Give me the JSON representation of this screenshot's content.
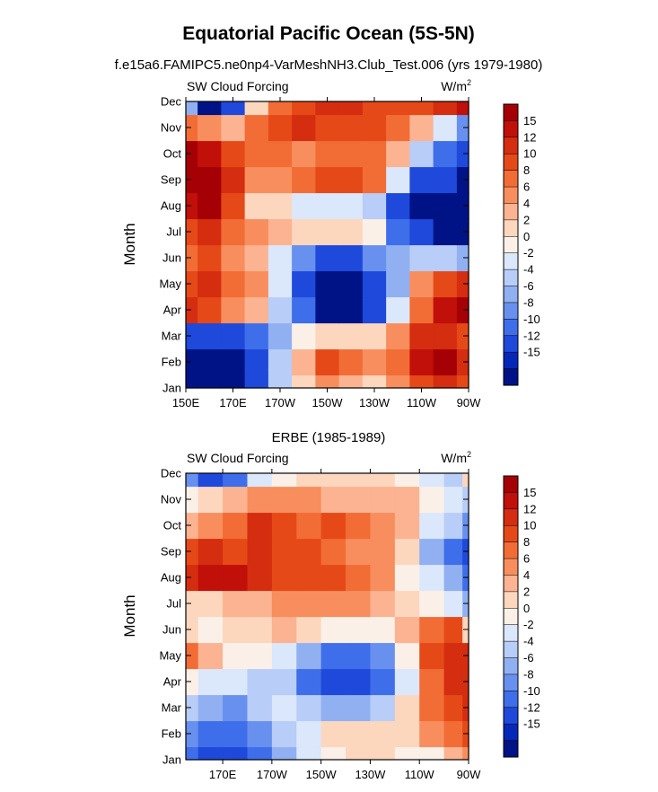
{
  "figure": {
    "title": "Equatorial Pacific Ocean (5S-5N)"
  },
  "panels": [
    {
      "subtitle": "f.e15a6.FAMIPC5.ne0np4-VarMeshNH3.Club_Test.006 (yrs 1979-1980)",
      "left_label": "SW Cloud Forcing",
      "units_base": "W/m",
      "units_sup": "2",
      "ylabel": "Month"
    },
    {
      "subtitle": "ERBE (1985-1989)",
      "left_label": "SW Cloud Forcing",
      "units_base": "W/m",
      "units_sup": "2",
      "ylabel": "Month"
    }
  ],
  "chart_data": [
    {
      "type": "heatmap",
      "title": "f.e15a6.FAMIPC5.ne0np4-VarMeshNH3.Club_Test.006 (yrs 1979-1980)",
      "variable": "SW Cloud Forcing",
      "units": "W/m2",
      "ylabel": "Month",
      "x_ticks": [
        "150E",
        "170E",
        "170W",
        "150W",
        "130W",
        "110W",
        "90W"
      ],
      "x_tick_lon": [
        150,
        170,
        190,
        210,
        230,
        250,
        270
      ],
      "xlim_lon": [
        150,
        270
      ],
      "y_ticks": [
        "Jan",
        "Feb",
        "Mar",
        "Apr",
        "May",
        "Jun",
        "Jul",
        "Aug",
        "Sep",
        "Oct",
        "Nov",
        "Dec"
      ],
      "x_lon": [
        150,
        160,
        170,
        180,
        190,
        200,
        210,
        220,
        230,
        240,
        250,
        260,
        270
      ],
      "z": [
        [
          -16,
          -16,
          -16,
          -12,
          -4,
          2,
          6,
          4,
          2,
          6,
          10,
          12,
          10
        ],
        [
          -16,
          -16,
          -16,
          -12,
          -4,
          4,
          10,
          8,
          6,
          8,
          14,
          16,
          12
        ],
        [
          -12,
          -14,
          -14,
          -10,
          -6,
          0,
          2,
          2,
          2,
          6,
          12,
          12,
          10
        ],
        [
          12,
          10,
          6,
          4,
          -4,
          -10,
          -16,
          -16,
          -12,
          -2,
          8,
          14,
          16
        ],
        [
          10,
          12,
          8,
          6,
          -2,
          -12,
          -16,
          -16,
          -14,
          -6,
          6,
          10,
          12
        ],
        [
          8,
          10,
          6,
          4,
          -2,
          -8,
          -12,
          -12,
          -8,
          -6,
          -4,
          -4,
          -6
        ],
        [
          10,
          12,
          8,
          6,
          4,
          2,
          2,
          2,
          0,
          -10,
          -14,
          -16,
          -16
        ],
        [
          14,
          16,
          10,
          2,
          2,
          -2,
          -2,
          -2,
          -4,
          -12,
          -16,
          -16,
          -16
        ],
        [
          16,
          16,
          12,
          6,
          6,
          8,
          10,
          10,
          8,
          -2,
          -12,
          -14,
          -16
        ],
        [
          16,
          14,
          10,
          8,
          8,
          6,
          8,
          8,
          8,
          4,
          -4,
          -10,
          -12
        ],
        [
          8,
          6,
          4,
          8,
          10,
          12,
          10,
          10,
          10,
          8,
          4,
          -2,
          -8
        ],
        [
          -6,
          -16,
          -12,
          2,
          8,
          10,
          12,
          12,
          10,
          10,
          10,
          12,
          14
        ]
      ],
      "colorbar_ticks": [
        15,
        12,
        10,
        8,
        6,
        4,
        2,
        0,
        -2,
        -4,
        -6,
        -8,
        -10,
        -12,
        -15
      ],
      "colorbar_colors": [
        "#a50005",
        "#c10f0a",
        "#d42d10",
        "#e64918",
        "#f26c36",
        "#f88e5d",
        "#fbb391",
        "#fdd6be",
        "#fbf0e8",
        "#dbe7fb",
        "#b8cdf7",
        "#91b0f2",
        "#6890ee",
        "#3e6ee9",
        "#1f49da",
        "#0628b9",
        "#001386"
      ]
    },
    {
      "type": "heatmap",
      "title": "ERBE (1985-1989)",
      "variable": "SW Cloud Forcing",
      "units": "W/m2",
      "ylabel": "Month",
      "x_ticks": [
        "170E",
        "170W",
        "150W",
        "130W",
        "110W",
        "90W"
      ],
      "x_tick_lon": [
        170,
        190,
        210,
        230,
        250,
        270
      ],
      "xlim_lon": [
        155,
        270
      ],
      "y_ticks": [
        "Jan",
        "Feb",
        "Mar",
        "Apr",
        "May",
        "Jun",
        "Jul",
        "Aug",
        "Sep",
        "Oct",
        "Nov",
        "Dec"
      ],
      "x_lon": [
        155,
        165,
        175,
        185,
        195,
        205,
        215,
        225,
        235,
        245,
        255,
        265,
        270
      ],
      "z": [
        [
          -10,
          -12,
          -14,
          -10,
          -6,
          -2,
          0,
          2,
          2,
          0,
          0,
          4,
          6
        ],
        [
          -8,
          -10,
          -10,
          -8,
          -4,
          -2,
          2,
          2,
          2,
          2,
          6,
          8,
          10
        ],
        [
          -4,
          -6,
          -8,
          -4,
          -2,
          -4,
          -6,
          -6,
          -4,
          2,
          8,
          10,
          12
        ],
        [
          0,
          -2,
          -2,
          -4,
          -4,
          -10,
          -14,
          -14,
          -10,
          -2,
          8,
          12,
          12
        ],
        [
          8,
          4,
          0,
          0,
          -2,
          -6,
          -10,
          -10,
          -8,
          0,
          10,
          12,
          12
        ],
        [
          2,
          0,
          2,
          2,
          4,
          2,
          0,
          0,
          0,
          4,
          8,
          10,
          2
        ],
        [
          2,
          2,
          4,
          4,
          6,
          6,
          6,
          6,
          4,
          2,
          0,
          -2,
          -6
        ],
        [
          12,
          14,
          14,
          12,
          10,
          10,
          10,
          8,
          6,
          0,
          -2,
          -6,
          -10
        ],
        [
          10,
          12,
          10,
          12,
          10,
          10,
          8,
          6,
          6,
          2,
          -6,
          -10,
          -14
        ],
        [
          4,
          6,
          8,
          12,
          10,
          8,
          10,
          8,
          6,
          4,
          -2,
          -4,
          -8
        ],
        [
          0,
          2,
          4,
          6,
          6,
          6,
          4,
          4,
          4,
          4,
          0,
          -2,
          -4
        ],
        [
          -8,
          -12,
          -10,
          -2,
          0,
          2,
          2,
          2,
          2,
          0,
          -2,
          -4,
          2
        ]
      ],
      "colorbar_ticks": [
        15,
        12,
        10,
        8,
        6,
        4,
        2,
        0,
        -2,
        -4,
        -6,
        -8,
        -10,
        -12,
        -15
      ],
      "colorbar_colors": [
        "#a50005",
        "#c10f0a",
        "#d42d10",
        "#e64918",
        "#f26c36",
        "#f88e5d",
        "#fbb391",
        "#fdd6be",
        "#fbf0e8",
        "#dbe7fb",
        "#b8cdf7",
        "#91b0f2",
        "#6890ee",
        "#3e6ee9",
        "#1f49da",
        "#0628b9",
        "#001386"
      ]
    }
  ]
}
